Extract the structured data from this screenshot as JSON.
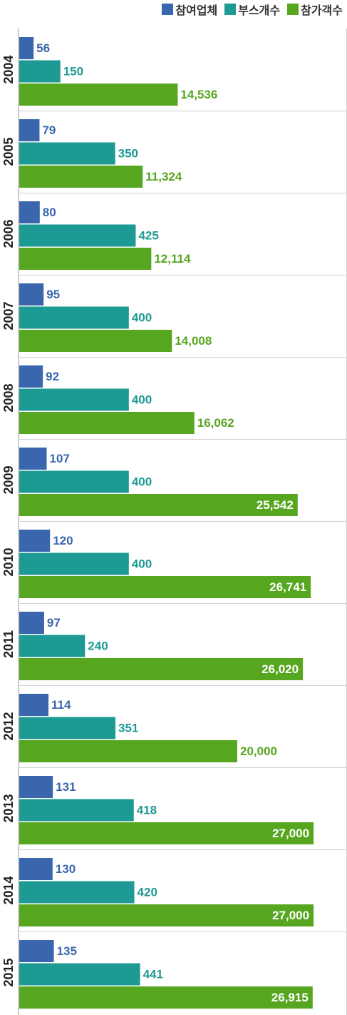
{
  "chart_data": {
    "type": "bar",
    "orientation": "horizontal",
    "categories": [
      "2004",
      "2005",
      "2006",
      "2007",
      "2008",
      "2009",
      "2010",
      "2011",
      "2012",
      "2013",
      "2014",
      "2015"
    ],
    "series": [
      {
        "name": "참여업체",
        "color": "#3a66ae",
        "values": [
          56,
          79,
          80,
          95,
          92,
          107,
          120,
          97,
          114,
          131,
          130,
          135
        ],
        "labels": [
          "56",
          "79",
          "80",
          "95",
          "92",
          "107",
          "120",
          "97",
          "114",
          "131",
          "130",
          "135"
        ]
      },
      {
        "name": "부스개수",
        "color": "#1d9a94",
        "values": [
          150,
          350,
          425,
          400,
          400,
          400,
          400,
          240,
          351,
          418,
          420,
          441
        ],
        "labels": [
          "150",
          "350",
          "425",
          "400",
          "400",
          "400",
          "400",
          "240",
          "351",
          "418",
          "420",
          "441"
        ]
      },
      {
        "name": "참가객수",
        "color": "#56a61f",
        "values": [
          14536,
          11324,
          12114,
          14008,
          16062,
          25542,
          26741,
          26020,
          20000,
          27000,
          27000,
          26915
        ],
        "labels": [
          "14,536",
          "11,324",
          "12,114",
          "14,008",
          "16,062",
          "25,542",
          "26,741",
          "26,020",
          "20,000",
          "27,000",
          "27,000",
          "26,915"
        ]
      }
    ],
    "legend_position": "top-right",
    "grid": false
  }
}
